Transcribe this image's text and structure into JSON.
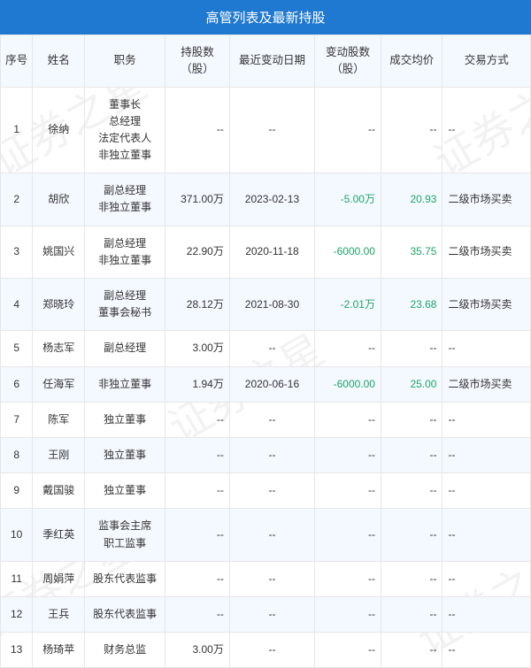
{
  "watermark_text": "证券之星",
  "title": "高管列表及最新持股",
  "columns": [
    {
      "label": "序号",
      "width": 34
    },
    {
      "label": "姓名",
      "width": 55
    },
    {
      "label": "职务",
      "width": 85
    },
    {
      "label": "持股数\n（股）",
      "width": 68
    },
    {
      "label": "最近变动日期",
      "width": 90
    },
    {
      "label": "变动股数\n（股）",
      "width": 70
    },
    {
      "label": "成交均价",
      "width": 65
    },
    {
      "label": "交易方式",
      "width": 93
    }
  ],
  "rows": [
    {
      "idx": "1",
      "name": "徐纳",
      "role": "董事长\n总经理\n法定代表人\n非独立董事",
      "shares": "--",
      "date": "--",
      "change": "--",
      "price": "--",
      "mode": "--",
      "change_green": false,
      "price_green": false
    },
    {
      "idx": "2",
      "name": "胡欣",
      "role": "副总经理\n非独立董事",
      "shares": "371.00万",
      "date": "2023-02-13",
      "change": "-5.00万",
      "price": "20.93",
      "mode": "二级市场买卖",
      "change_green": true,
      "price_green": true
    },
    {
      "idx": "3",
      "name": "姚国兴",
      "role": "副总经理\n非独立董事",
      "shares": "22.90万",
      "date": "2020-11-18",
      "change": "-6000.00",
      "price": "35.75",
      "mode": "二级市场买卖",
      "change_green": true,
      "price_green": true
    },
    {
      "idx": "4",
      "name": "郑晓玲",
      "role": "副总经理\n董事会秘书",
      "shares": "28.12万",
      "date": "2021-08-30",
      "change": "-2.01万",
      "price": "23.68",
      "mode": "二级市场买卖",
      "change_green": true,
      "price_green": true
    },
    {
      "idx": "5",
      "name": "杨志军",
      "role": "副总经理",
      "shares": "3.00万",
      "date": "--",
      "change": "--",
      "price": "--",
      "mode": "--",
      "change_green": false,
      "price_green": false
    },
    {
      "idx": "6",
      "name": "任海军",
      "role": "非独立董事",
      "shares": "1.94万",
      "date": "2020-06-16",
      "change": "-6000.00",
      "price": "25.00",
      "mode": "二级市场买卖",
      "change_green": true,
      "price_green": true
    },
    {
      "idx": "7",
      "name": "陈军",
      "role": "独立董事",
      "shares": "--",
      "date": "--",
      "change": "--",
      "price": "--",
      "mode": "--",
      "change_green": false,
      "price_green": false
    },
    {
      "idx": "8",
      "name": "王刚",
      "role": "独立董事",
      "shares": "--",
      "date": "--",
      "change": "--",
      "price": "--",
      "mode": "--",
      "change_green": false,
      "price_green": false
    },
    {
      "idx": "9",
      "name": "戴国骏",
      "role": "独立董事",
      "shares": "--",
      "date": "--",
      "change": "--",
      "price": "--",
      "mode": "--",
      "change_green": false,
      "price_green": false
    },
    {
      "idx": "10",
      "name": "季红英",
      "role": "监事会主席\n职工监事",
      "shares": "--",
      "date": "--",
      "change": "--",
      "price": "--",
      "mode": "--",
      "change_green": false,
      "price_green": false
    },
    {
      "idx": "11",
      "name": "周娟萍",
      "role": "股东代表监事",
      "shares": "--",
      "date": "--",
      "change": "--",
      "price": "--",
      "mode": "--",
      "change_green": false,
      "price_green": false
    },
    {
      "idx": "12",
      "name": "王兵",
      "role": "股东代表监事",
      "shares": "--",
      "date": "--",
      "change": "--",
      "price": "--",
      "mode": "--",
      "change_green": false,
      "price_green": false
    },
    {
      "idx": "13",
      "name": "杨琦苹",
      "role": "财务总监",
      "shares": "3.00万",
      "date": "--",
      "change": "--",
      "price": "--",
      "mode": "--",
      "change_green": false,
      "price_green": false
    }
  ],
  "colors": {
    "header_bg": "#2079d0",
    "header_text": "#ffffff",
    "th_bg": "#f4f9ff",
    "even_row_bg": "#f4f9ff",
    "border": "#e6e6e6",
    "text": "#333333",
    "green": "#1fa567"
  },
  "fontsize": {
    "title": 15,
    "th": 12.5,
    "td": 12
  }
}
